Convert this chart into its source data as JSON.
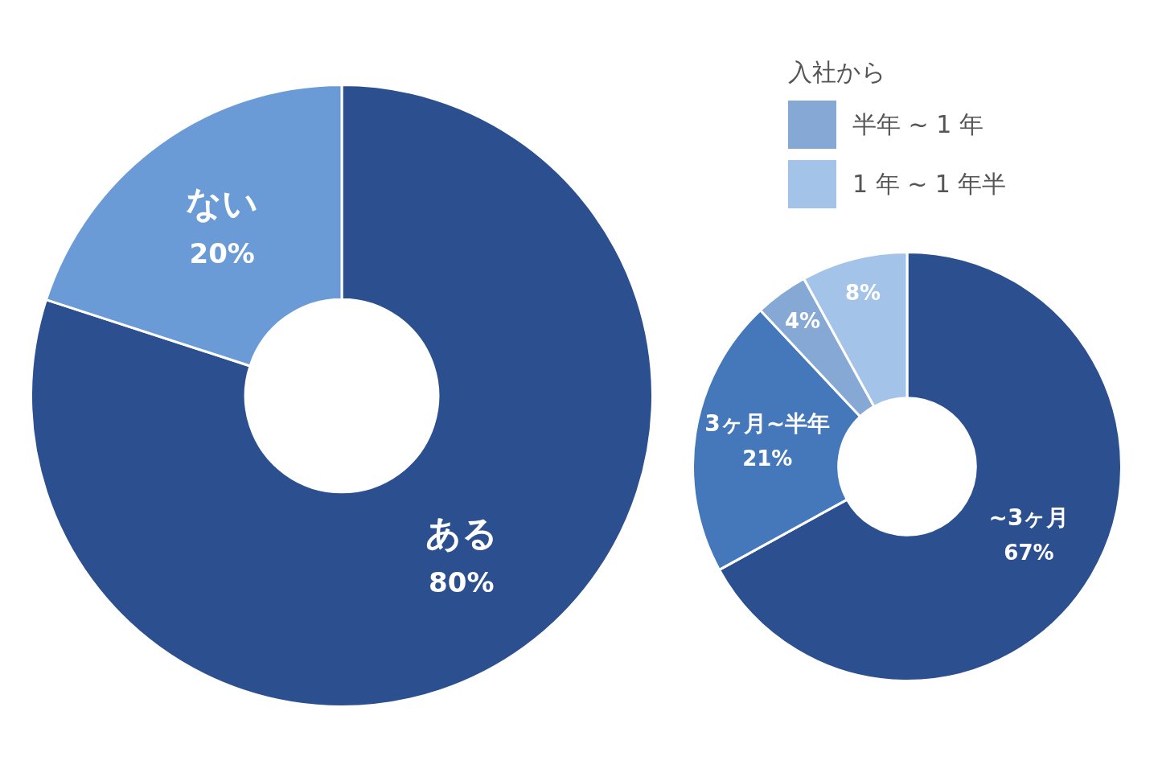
{
  "chart_data": [
    {
      "type": "donut",
      "categories": [
        "ある",
        "ない"
      ],
      "values": [
        80,
        20
      ],
      "colors": [
        "#2b4f8f",
        "#6a9bd6"
      ],
      "value_labels": [
        "80%",
        "20%"
      ]
    },
    {
      "type": "donut",
      "categories": [
        "~3ヶ月",
        "3ヶ月~半年",
        "半年 ~ 1 年",
        "1 年 ~ 1 年半"
      ],
      "values": [
        67,
        21,
        4,
        8
      ],
      "colors": [
        "#2b4f8f",
        "#4478bb",
        "#85a8d4",
        "#a3c4e8"
      ],
      "value_labels": [
        "67%",
        "21%",
        "4%",
        "8%"
      ],
      "legend": "top right",
      "legend_title": "入社から"
    }
  ]
}
